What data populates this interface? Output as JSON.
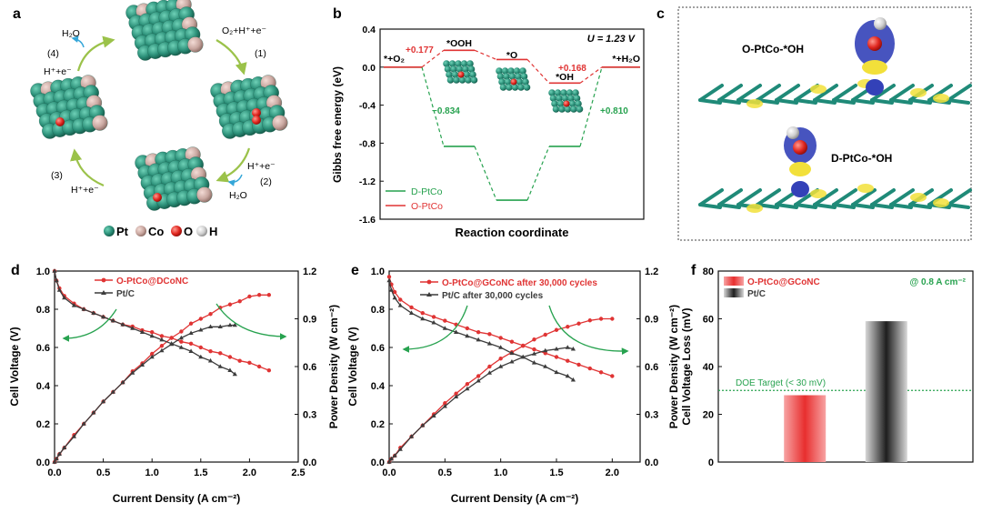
{
  "panel_labels": {
    "a": "a",
    "b": "b",
    "c": "c",
    "d": "d",
    "e": "e",
    "f": "f"
  },
  "colors": {
    "pt": "#2b8f78",
    "pt_dark": "#1b6d5a",
    "co": "#c9a7a0",
    "o": "#e0261f",
    "h": "#d9d9d9",
    "green": "#27a24f",
    "red": "#e03434",
    "black": "#3c3c3c",
    "arrow": "#9bc24a",
    "arrow_blue": "#34a6d8"
  },
  "panel_a": {
    "steps": [
      {
        "num": "(1)",
        "species": "O₂+H⁺+e⁻"
      },
      {
        "num": "(2)",
        "species": "H⁺+e⁻",
        "product": "H₂O"
      },
      {
        "num": "(3)",
        "species": "H⁺+e⁻"
      },
      {
        "num": "(4)",
        "species": "H⁺+e⁻",
        "product": "H₂O"
      }
    ],
    "legend": [
      "Pt",
      "Co",
      "O",
      "H"
    ]
  },
  "panel_c": {
    "top_label": "O-PtCo-*OH",
    "bottom_label": "D-PtCo-*OH"
  },
  "chart_data": [
    {
      "id": "b",
      "type": "line",
      "title": "U = 1.23 V",
      "xlabel": "Reaction coordinate",
      "ylabel": "Gibbs free energy (eV)",
      "ylim": [
        -1.6,
        0.4
      ],
      "yticks": [
        -1.6,
        -1.2,
        -0.8,
        -0.4,
        0.0,
        0.4
      ],
      "categories": [
        "*+O₂",
        "*OOH",
        "*O",
        "*OH",
        "*+H₂O"
      ],
      "series": [
        {
          "name": "D-PtCo",
          "color": "#27a24f",
          "values": [
            0.0,
            -0.834,
            -1.4,
            -0.834,
            0.0
          ]
        },
        {
          "name": "O-PtCo",
          "color": "#e03434",
          "values": [
            0.0,
            0.177,
            0.08,
            -0.168,
            0.0
          ]
        }
      ],
      "annotations": [
        {
          "text": "+0.177",
          "color": "red"
        },
        {
          "text": "+0.168",
          "color": "red"
        },
        {
          "text": "−0.834",
          "color": "green"
        },
        {
          "text": "+0.810",
          "color": "green"
        }
      ],
      "legend_position": "bottom-left"
    },
    {
      "id": "d",
      "type": "line",
      "xlabel": "Current Density (A cm⁻²)",
      "ylabel": "Cell Voltage (V)",
      "y2label": "Power Density (W cm⁻²)",
      "xlim": [
        0,
        2.5
      ],
      "ylim": [
        0,
        1.0
      ],
      "y2lim": [
        0,
        1.2
      ],
      "xticks": [
        "0.0",
        "0.5",
        "1.0",
        "1.5",
        "2.0",
        "2.5"
      ],
      "yticks": [
        "0.0",
        "0.2",
        "0.4",
        "0.6",
        "0.8",
        "1.0"
      ],
      "y2ticks": [
        "0.0",
        "0.3",
        "0.6",
        "0.9",
        "1.2"
      ],
      "series": [
        {
          "name": "O-PtCo@DCoNC",
          "color": "#e03434",
          "marker": "circle",
          "x": [
            0,
            0.02,
            0.05,
            0.1,
            0.2,
            0.3,
            0.4,
            0.5,
            0.6,
            0.7,
            0.8,
            0.9,
            1.0,
            1.1,
            1.2,
            1.3,
            1.4,
            1.5,
            1.6,
            1.7,
            1.8,
            1.9,
            2.0,
            2.1,
            2.2
          ],
          "y": [
            1.0,
            0.95,
            0.91,
            0.87,
            0.83,
            0.8,
            0.78,
            0.76,
            0.74,
            0.72,
            0.71,
            0.69,
            0.68,
            0.66,
            0.65,
            0.63,
            0.62,
            0.6,
            0.58,
            0.57,
            0.55,
            0.53,
            0.52,
            0.5,
            0.48
          ],
          "power": [
            0,
            0.02,
            0.05,
            0.09,
            0.17,
            0.24,
            0.31,
            0.38,
            0.44,
            0.5,
            0.57,
            0.62,
            0.68,
            0.73,
            0.78,
            0.82,
            0.87,
            0.9,
            0.93,
            0.97,
            0.99,
            1.01,
            1.04,
            1.05,
            1.05
          ]
        },
        {
          "name": "Pt/C",
          "color": "#3c3c3c",
          "marker": "triangle",
          "x": [
            0,
            0.02,
            0.05,
            0.1,
            0.2,
            0.3,
            0.4,
            0.5,
            0.6,
            0.7,
            0.8,
            0.9,
            1.0,
            1.1,
            1.2,
            1.3,
            1.4,
            1.5,
            1.6,
            1.7,
            1.8,
            1.85
          ],
          "y": [
            1.0,
            0.95,
            0.9,
            0.86,
            0.82,
            0.8,
            0.78,
            0.76,
            0.74,
            0.72,
            0.7,
            0.68,
            0.66,
            0.64,
            0.62,
            0.6,
            0.58,
            0.55,
            0.53,
            0.5,
            0.48,
            0.46
          ],
          "power": [
            0,
            0.02,
            0.05,
            0.09,
            0.16,
            0.24,
            0.31,
            0.38,
            0.44,
            0.5,
            0.56,
            0.61,
            0.66,
            0.7,
            0.74,
            0.78,
            0.81,
            0.83,
            0.85,
            0.85,
            0.86,
            0.86
          ]
        }
      ],
      "legend_position": "top-left"
    },
    {
      "id": "e",
      "type": "line",
      "xlabel": "Current Density (A cm⁻²)",
      "ylabel": "Cell Voltage (V)",
      "y2label": "Power Density (W cm⁻²)",
      "xlim": [
        0,
        2.25
      ],
      "ylim": [
        0,
        1.0
      ],
      "y2lim": [
        0,
        1.2
      ],
      "xticks": [
        "0.0",
        "0.5",
        "1.0",
        "1.5",
        "2.0"
      ],
      "yticks": [
        "0.0",
        "0.2",
        "0.4",
        "0.6",
        "0.8",
        "1.0"
      ],
      "y2ticks": [
        "0.0",
        "0.3",
        "0.6",
        "0.9",
        "1.2"
      ],
      "series": [
        {
          "name": "O-PtCo@GCoNC after 30,000 cycles",
          "color": "#e03434",
          "marker": "circle",
          "x": [
            0,
            0.02,
            0.05,
            0.1,
            0.2,
            0.3,
            0.4,
            0.5,
            0.6,
            0.7,
            0.8,
            0.9,
            1.0,
            1.1,
            1.2,
            1.3,
            1.4,
            1.5,
            1.6,
            1.7,
            1.8,
            1.9,
            2.0
          ],
          "y": [
            0.97,
            0.93,
            0.89,
            0.85,
            0.81,
            0.78,
            0.76,
            0.74,
            0.72,
            0.7,
            0.68,
            0.67,
            0.65,
            0.63,
            0.61,
            0.59,
            0.57,
            0.55,
            0.53,
            0.51,
            0.49,
            0.47,
            0.45
          ],
          "power": [
            0,
            0.02,
            0.04,
            0.09,
            0.16,
            0.23,
            0.3,
            0.37,
            0.43,
            0.49,
            0.54,
            0.6,
            0.65,
            0.69,
            0.73,
            0.77,
            0.8,
            0.83,
            0.85,
            0.87,
            0.89,
            0.9,
            0.9
          ]
        },
        {
          "name": "Pt/C after 30,000 cycles",
          "color": "#3c3c3c",
          "marker": "triangle",
          "x": [
            0,
            0.02,
            0.05,
            0.1,
            0.2,
            0.3,
            0.4,
            0.5,
            0.6,
            0.7,
            0.8,
            0.9,
            1.0,
            1.1,
            1.2,
            1.3,
            1.4,
            1.5,
            1.6,
            1.65
          ],
          "y": [
            0.95,
            0.9,
            0.86,
            0.82,
            0.78,
            0.75,
            0.73,
            0.7,
            0.68,
            0.66,
            0.64,
            0.62,
            0.6,
            0.57,
            0.55,
            0.52,
            0.5,
            0.47,
            0.45,
            0.43
          ],
          "power": [
            0,
            0.02,
            0.04,
            0.08,
            0.16,
            0.23,
            0.29,
            0.35,
            0.41,
            0.46,
            0.51,
            0.56,
            0.6,
            0.63,
            0.66,
            0.68,
            0.7,
            0.71,
            0.72,
            0.71
          ]
        }
      ],
      "legend_position": "top-left"
    },
    {
      "id": "f",
      "type": "bar",
      "ylabel": "Cell Voltage Loss (mV)",
      "ylim": [
        0,
        80
      ],
      "yticks": [
        "0",
        "20",
        "40",
        "60",
        "80"
      ],
      "categories": [
        "O-PtCo@GCoNC",
        "Pt/C"
      ],
      "values": [
        28,
        59
      ],
      "condition": "@ 0.8 A cm⁻²",
      "reference_line": {
        "label": "DOE Target (< 30 mV)",
        "value": 30
      },
      "legend_position": "top-left"
    }
  ]
}
